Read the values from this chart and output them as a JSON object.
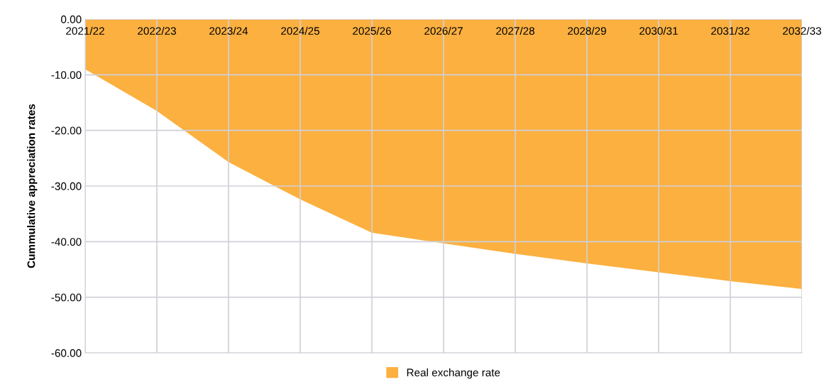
{
  "chart_data": {
    "type": "area",
    "ylabel": "Cummulative appreciation rates",
    "categories": [
      "2021/22",
      "2022/23",
      "2023/24",
      "2024/25",
      "2025/26",
      "2026/27",
      "2027/28",
      "2028/29",
      "2030/31",
      "2031/32",
      "2032/33"
    ],
    "series": [
      {
        "name": "Real exchange rate",
        "color": "#fbb040",
        "values": [
          -9.0,
          -16.5,
          -25.7,
          -32.4,
          -38.4,
          -40.3,
          -42.2,
          -43.9,
          -45.5,
          -47.1,
          -48.5
        ]
      }
    ],
    "ylim": [
      -60,
      0
    ],
    "yticks": [
      {
        "value": -60,
        "label": "-60.00"
      },
      {
        "value": -50,
        "label": "-50.00"
      },
      {
        "value": -40,
        "label": "-40.00"
      },
      {
        "value": -30,
        "label": "-30.00"
      },
      {
        "value": -20,
        "label": "-20.00"
      },
      {
        "value": -10,
        "label": "-10.00"
      },
      {
        "value": 0,
        "label": "0.00"
      }
    ],
    "grid": true,
    "legend": "bottom"
  }
}
